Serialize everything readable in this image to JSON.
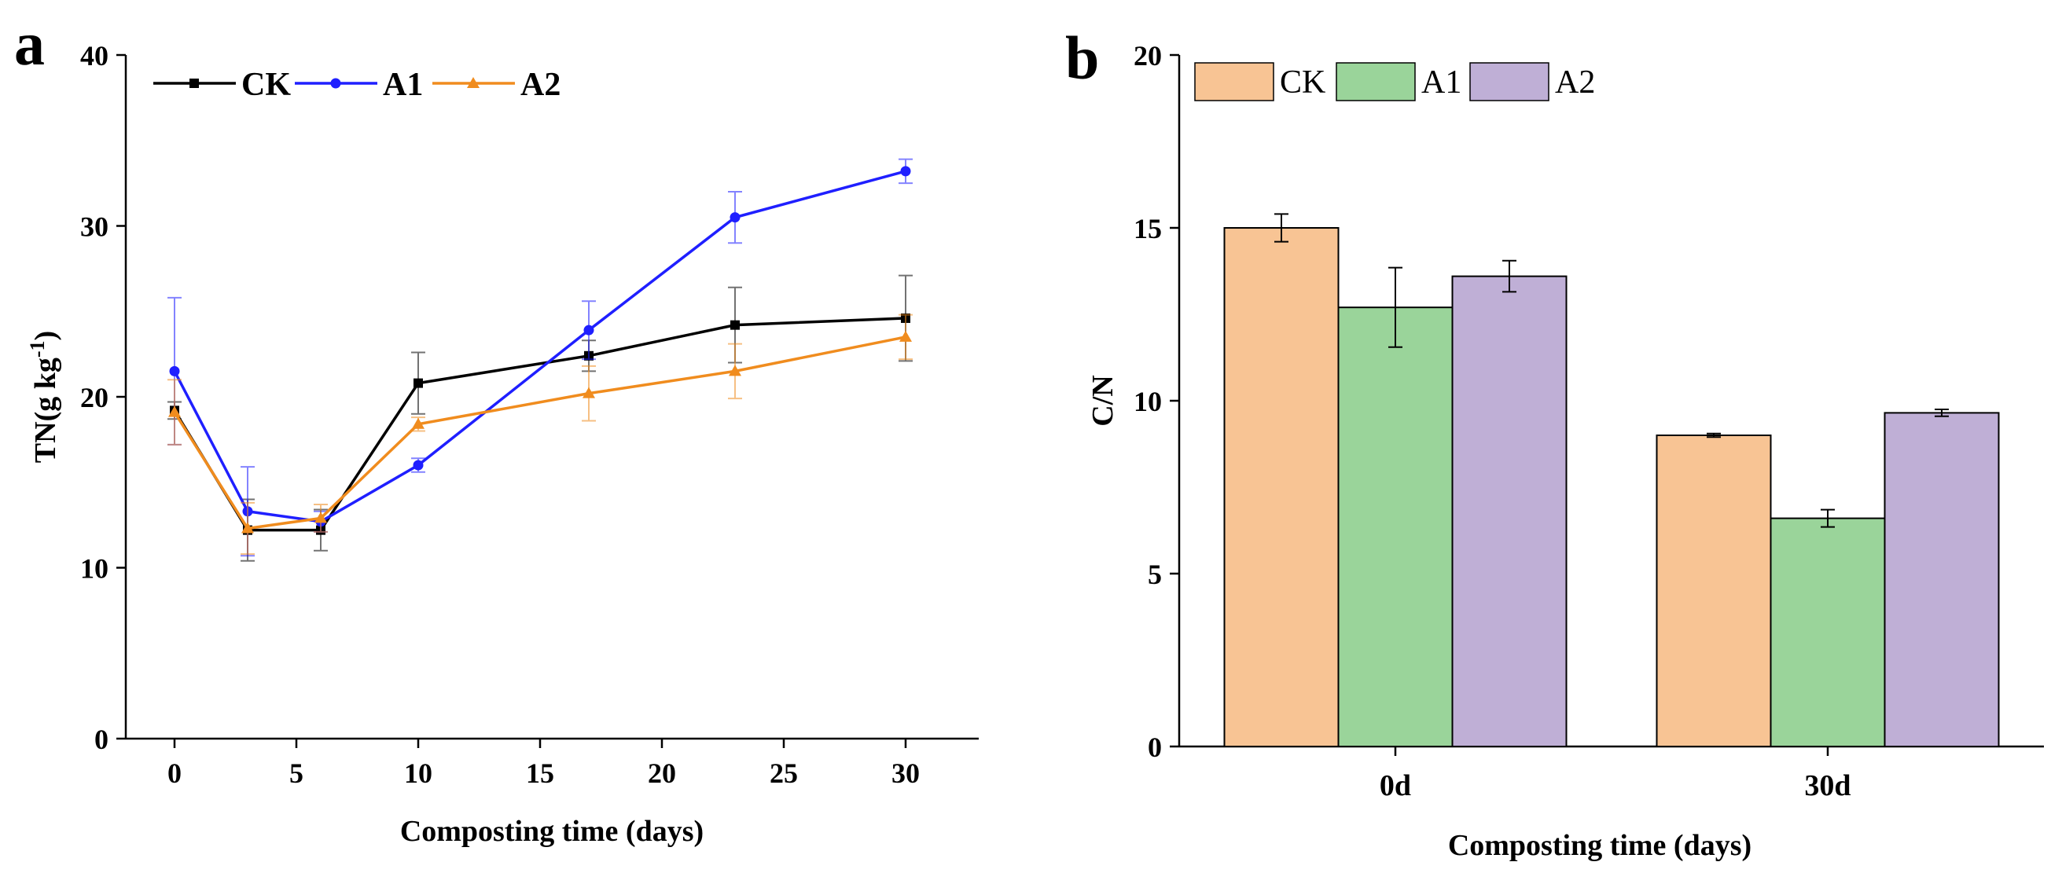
{
  "chart_data": [
    {
      "panel_label": "a",
      "type": "line",
      "xlabel": "Composting time (days)",
      "ylabel_main": "TN(g kg",
      "ylabel_sup": "-1",
      "ylabel_close": ")",
      "xlim": [
        -2,
        33
      ],
      "ylim": [
        0,
        40
      ],
      "xticks": [
        0,
        5,
        10,
        15,
        20,
        25,
        30
      ],
      "yticks": [
        0,
        10,
        20,
        30,
        40
      ],
      "x": [
        0,
        3,
        6,
        10,
        17,
        23,
        30
      ],
      "series": [
        {
          "name": "CK",
          "color": "#000000",
          "marker": "square",
          "values": [
            19.2,
            12.2,
            12.2,
            20.8,
            22.4,
            24.2,
            24.6
          ],
          "errors": [
            0.5,
            1.8,
            1.2,
            1.8,
            0.9,
            2.2,
            2.5
          ]
        },
        {
          "name": "A1",
          "color": "#1f1fff",
          "marker": "circle",
          "values": [
            21.5,
            13.3,
            12.7,
            16.0,
            23.9,
            30.5,
            33.2
          ],
          "errors": [
            4.3,
            2.6,
            0.6,
            0.4,
            1.7,
            1.5,
            0.7
          ]
        },
        {
          "name": "A2",
          "color": "#f08c1e",
          "marker": "triangle",
          "values": [
            19.1,
            12.3,
            12.9,
            18.4,
            20.2,
            21.5,
            23.5
          ],
          "errors": [
            1.9,
            1.5,
            0.8,
            0.4,
            1.6,
            1.6,
            1.3
          ]
        }
      ]
    },
    {
      "panel_label": "b",
      "type": "bar",
      "xlabel": "Composting time (days)",
      "ylabel": "C/N",
      "categories": [
        "0d",
        "30d"
      ],
      "ylim": [
        0,
        20
      ],
      "yticks": [
        0,
        5,
        10,
        15,
        20
      ],
      "series": [
        {
          "name": "CK",
          "color": "#f8c494",
          "values": [
            15.0,
            9.0
          ],
          "errors": [
            0.4,
            0.05
          ]
        },
        {
          "name": "A1",
          "color": "#9ad49a",
          "values": [
            12.7,
            6.6
          ],
          "errors": [
            1.15,
            0.25
          ]
        },
        {
          "name": "A2",
          "color": "#bfafd6",
          "values": [
            13.6,
            9.65
          ],
          "errors": [
            0.45,
            0.1
          ]
        }
      ]
    }
  ]
}
